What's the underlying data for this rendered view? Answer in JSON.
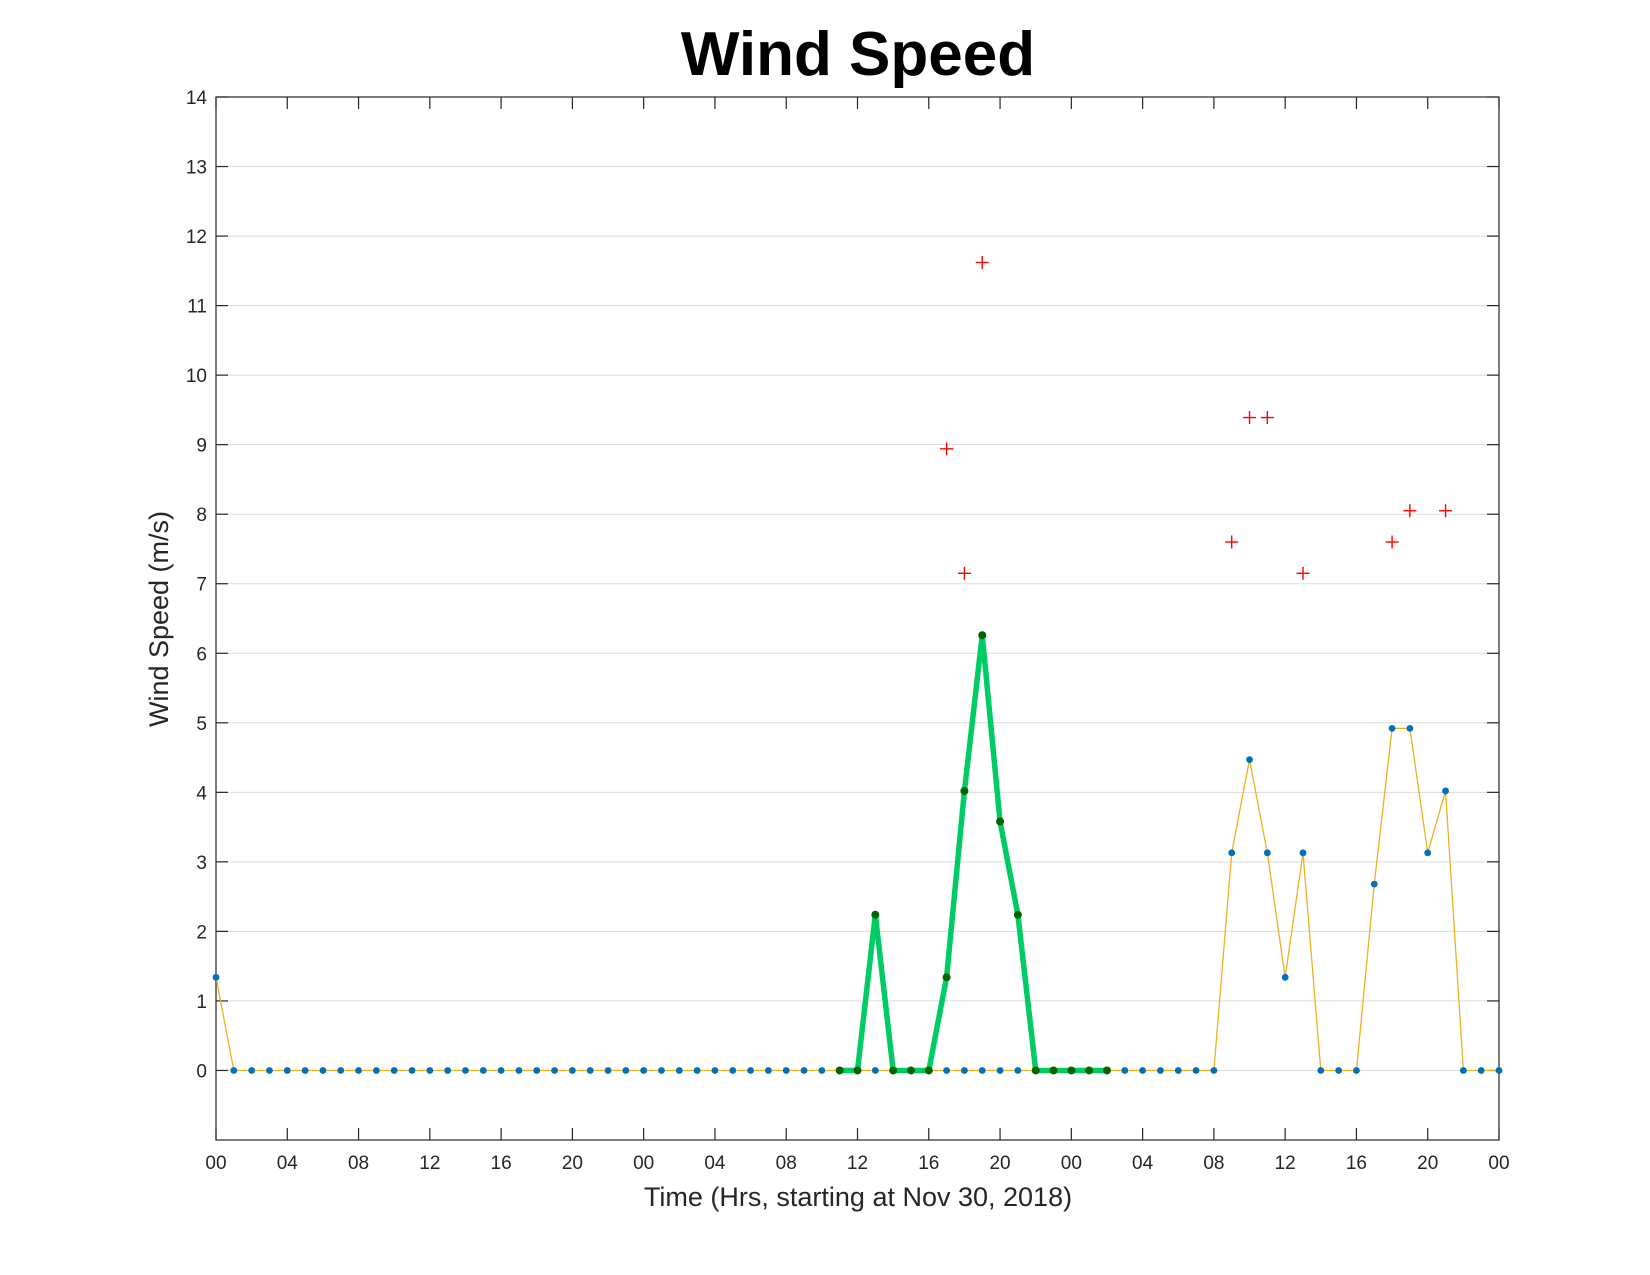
{
  "chart_data": {
    "type": "line",
    "title": "Wind Speed",
    "xlabel": "Time (Hrs, starting at Nov 30, 2018)",
    "ylabel": "Wind Speed (m/s)",
    "ylim": [
      -1,
      14
    ],
    "yticks": [
      0,
      1,
      2,
      3,
      4,
      5,
      6,
      7,
      8,
      9,
      10,
      11,
      12,
      13,
      14
    ],
    "xlim": [
      0,
      72
    ],
    "xtick_hours": [
      0,
      4,
      8,
      12,
      16,
      20,
      24,
      28,
      32,
      36,
      40,
      44,
      48,
      52,
      56,
      60,
      64,
      68,
      72
    ],
    "xtick_labels": [
      "00",
      "04",
      "08",
      "12",
      "16",
      "20",
      "00",
      "04",
      "08",
      "12",
      "16",
      "20",
      "00",
      "04",
      "08",
      "12",
      "16",
      "20",
      "00"
    ],
    "grid": true,
    "colors": {
      "speed_line": "#EDB120",
      "speed_marker": "#0072BD",
      "highlight_line": "#00CC66",
      "highlight_marker": "#006400",
      "gust_marker": "#FF0000"
    },
    "series": [
      {
        "style": "thin-line-with-dots",
        "x": [
          0,
          1,
          2,
          3,
          4,
          5,
          6,
          7,
          8,
          9,
          10,
          11,
          12,
          13,
          14,
          15,
          16,
          17,
          18,
          19,
          20,
          21,
          22,
          23,
          24,
          25,
          26,
          27,
          28,
          29,
          30,
          31,
          32,
          33,
          34,
          35,
          36,
          37,
          38,
          39,
          40,
          41,
          42,
          43,
          44,
          45,
          46,
          47,
          48,
          49,
          50,
          51,
          52,
          53,
          54,
          55,
          56,
          57,
          58,
          59,
          60,
          61,
          62,
          63,
          64,
          65,
          66,
          67,
          68,
          69,
          70,
          71,
          72
        ],
        "values": [
          1.34,
          0,
          0,
          0,
          0,
          0,
          0,
          0,
          0,
          0,
          0,
          0,
          0,
          0,
          0,
          0,
          0,
          0,
          0,
          0,
          0,
          0,
          0,
          0,
          0,
          0,
          0,
          0,
          0,
          0,
          0,
          0,
          0,
          0,
          0,
          0,
          0,
          0,
          0,
          0,
          0,
          0,
          0,
          0,
          0,
          0,
          0,
          0,
          0,
          0,
          0,
          0,
          0,
          0,
          0,
          0,
          0,
          3.13,
          4.47,
          3.13,
          1.34,
          3.13,
          0,
          0,
          0,
          2.68,
          4.92,
          4.92,
          3.13,
          4.02,
          0,
          0,
          0
        ]
      },
      {
        "style": "thick-highlight",
        "x": [
          35,
          36,
          37,
          38,
          39,
          40,
          41,
          42,
          43,
          44,
          45,
          46,
          47,
          48,
          49,
          50
        ],
        "values": [
          0,
          0,
          2.24,
          0,
          0,
          0,
          1.34,
          4.02,
          6.26,
          3.58,
          2.24,
          0,
          0,
          0,
          0,
          0
        ]
      },
      {
        "style": "plus-markers",
        "x": [
          41,
          42,
          43,
          57,
          58,
          59,
          61,
          66,
          67,
          69
        ],
        "values": [
          8.94,
          7.15,
          11.62,
          7.6,
          9.39,
          9.39,
          7.15,
          7.6,
          8.05,
          8.05
        ]
      }
    ]
  }
}
